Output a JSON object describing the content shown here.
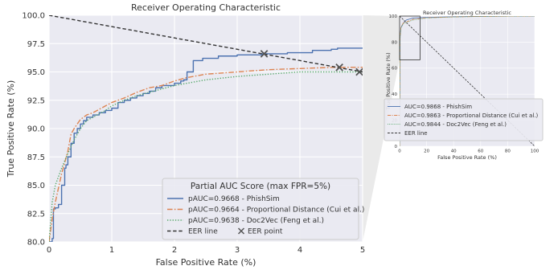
{
  "chart_data": [
    {
      "type": "line",
      "title": "Receiver Operating Characteristic",
      "xlabel": "False Positive Rate (%)",
      "ylabel": "True Positive Rate (%)",
      "xlim": [
        0,
        5
      ],
      "ylim": [
        80,
        100
      ],
      "x_ticks": [
        "0",
        "1",
        "2",
        "3",
        "4",
        "5"
      ],
      "y_ticks": [
        "80.0",
        "82.5",
        "85.0",
        "87.5",
        "90.0",
        "92.5",
        "95.0",
        "97.5",
        "100.0"
      ],
      "grid": true,
      "background": "#eaeaf2",
      "legend": {
        "title": "Partial AUC Score (max FPR=5%)",
        "placement": "lower-right",
        "entries": [
          "pAUC=0.9668 - PhishSim",
          "pAUC=0.9664 - Proportional Distance (Cui et al.)",
          "pAUC=0.9638 - Doc2Vec (Feng et al.)",
          "EER line",
          "EER point"
        ]
      },
      "series": [
        {
          "name": "pAUC=0.9668 - PhishSim",
          "color": "#4c72b0",
          "style": "solid-step",
          "x": [
            0,
            0.05,
            0.07,
            0.1,
            0.15,
            0.2,
            0.25,
            0.27,
            0.3,
            0.35,
            0.4,
            0.45,
            0.5,
            0.55,
            0.6,
            0.7,
            0.8,
            0.9,
            1.0,
            1.1,
            1.2,
            1.3,
            1.4,
            1.5,
            1.6,
            1.7,
            1.8,
            2.0,
            2.1,
            2.15,
            2.2,
            2.3,
            2.45,
            2.7,
            3.0,
            3.4,
            3.8,
            4.2,
            4.5,
            4.6,
            5.0
          ],
          "y": [
            80,
            80.3,
            82.9,
            83.0,
            83.3,
            85.0,
            86.5,
            86.8,
            87.5,
            88.7,
            89.6,
            90.0,
            90.4,
            90.7,
            91.0,
            91.2,
            91.4,
            91.6,
            91.8,
            92.3,
            92.5,
            92.7,
            92.9,
            93.1,
            93.3,
            93.6,
            93.8,
            94.0,
            94.2,
            94.3,
            95.0,
            96.0,
            96.2,
            96.4,
            96.5,
            96.6,
            96.7,
            96.9,
            97.0,
            97.1,
            97.1
          ]
        },
        {
          "name": "pAUC=0.9664 - Proportional Distance (Cui et al.)",
          "color": "#dd8452",
          "style": "dashdot",
          "x": [
            0,
            0.05,
            0.1,
            0.2,
            0.3,
            0.35,
            0.4,
            0.5,
            0.6,
            0.7,
            0.8,
            0.9,
            1.0,
            1.2,
            1.4,
            1.6,
            1.8,
            2.0,
            2.2,
            2.5,
            3.0,
            3.5,
            4.0,
            4.5,
            5.0
          ],
          "y": [
            80,
            82.0,
            83.5,
            86.0,
            88.0,
            89.5,
            90.0,
            90.8,
            91.2,
            91.4,
            91.7,
            92.0,
            92.3,
            92.7,
            93.2,
            93.6,
            93.8,
            94.2,
            94.5,
            94.8,
            95.0,
            95.2,
            95.3,
            95.4,
            95.4
          ]
        },
        {
          "name": "pAUC=0.9638 - Doc2Vec (Feng et al.)",
          "color": "#55a868",
          "style": "dotted",
          "x": [
            0,
            0.05,
            0.1,
            0.2,
            0.3,
            0.4,
            0.5,
            0.6,
            0.7,
            0.8,
            0.9,
            1.0,
            1.2,
            1.4,
            1.6,
            1.8,
            2.0,
            2.2,
            2.5,
            3.0,
            3.5,
            4.0,
            4.5,
            5.0
          ],
          "y": [
            80,
            83.5,
            85.0,
            86.5,
            87.8,
            89.0,
            90.0,
            90.7,
            91.0,
            91.3,
            91.6,
            92.0,
            92.5,
            92.9,
            93.2,
            93.5,
            93.8,
            94.0,
            94.3,
            94.6,
            94.8,
            95.0,
            95.0,
            95.0
          ]
        },
        {
          "name": "EER line",
          "color": "#333333",
          "style": "dashed",
          "x": [
            0,
            5
          ],
          "y": [
            100,
            95
          ]
        }
      ],
      "eer_points": [
        {
          "x": 3.43,
          "y": 96.6
        },
        {
          "x": 4.63,
          "y": 95.4
        },
        {
          "x": 4.95,
          "y": 95.0
        }
      ]
    },
    {
      "type": "line",
      "title": "Receiver Operating Characteristic",
      "xlabel": "False Positive Rate (%)",
      "ylabel": "True Positive Rate (%)",
      "xlim": [
        0,
        100
      ],
      "ylim": [
        0,
        100
      ],
      "x_ticks": [
        "0",
        "20",
        "40",
        "60",
        "80",
        "100"
      ],
      "y_ticks": [
        "0",
        "20",
        "40",
        "60",
        "80",
        "100"
      ],
      "grid": true,
      "background": "#eaeaf2",
      "legend": {
        "placement": "lower-right",
        "entries": [
          "AUC=0.9868 - PhishSim",
          "AUC=0.9863 - Proportional Distance (Cui et al.)",
          "AUC=0.9844 - Doc2Vec (Feng et al.)",
          "EER line"
        ]
      },
      "zoom_box": {
        "x": [
          0,
          5
        ],
        "y": [
          80,
          100
        ]
      },
      "series": [
        {
          "name": "AUC=0.9868 - PhishSim",
          "color": "#4c72b0",
          "style": "solid",
          "x": [
            0,
            0.3,
            1,
            3,
            5,
            10,
            20,
            40,
            60,
            80,
            100
          ],
          "y": [
            0,
            84,
            91,
            95,
            97,
            98.5,
            99,
            99.5,
            99.8,
            99.9,
            100
          ]
        },
        {
          "name": "AUC=0.9863 - Proportional Distance (Cui et al.)",
          "color": "#dd8452",
          "style": "dashdot",
          "x": [
            0,
            0.3,
            1,
            3,
            5,
            10,
            20,
            40,
            60,
            80,
            100
          ],
          "y": [
            0,
            83,
            92,
            95,
            95.5,
            97.5,
            98.7,
            99.4,
            99.7,
            99.9,
            100
          ]
        },
        {
          "name": "AUC=0.9844 - Doc2Vec (Feng et al.)",
          "color": "#55a868",
          "style": "dotted",
          "x": [
            0,
            0.3,
            1,
            3,
            5,
            10,
            20,
            40,
            60,
            80,
            100
          ],
          "y": [
            0,
            82,
            91,
            94.5,
            95,
            97,
            98.5,
            99.3,
            99.7,
            99.9,
            100
          ]
        },
        {
          "name": "EER line",
          "color": "#333333",
          "style": "dashed",
          "x": [
            0,
            100
          ],
          "y": [
            100,
            0
          ]
        }
      ]
    }
  ]
}
